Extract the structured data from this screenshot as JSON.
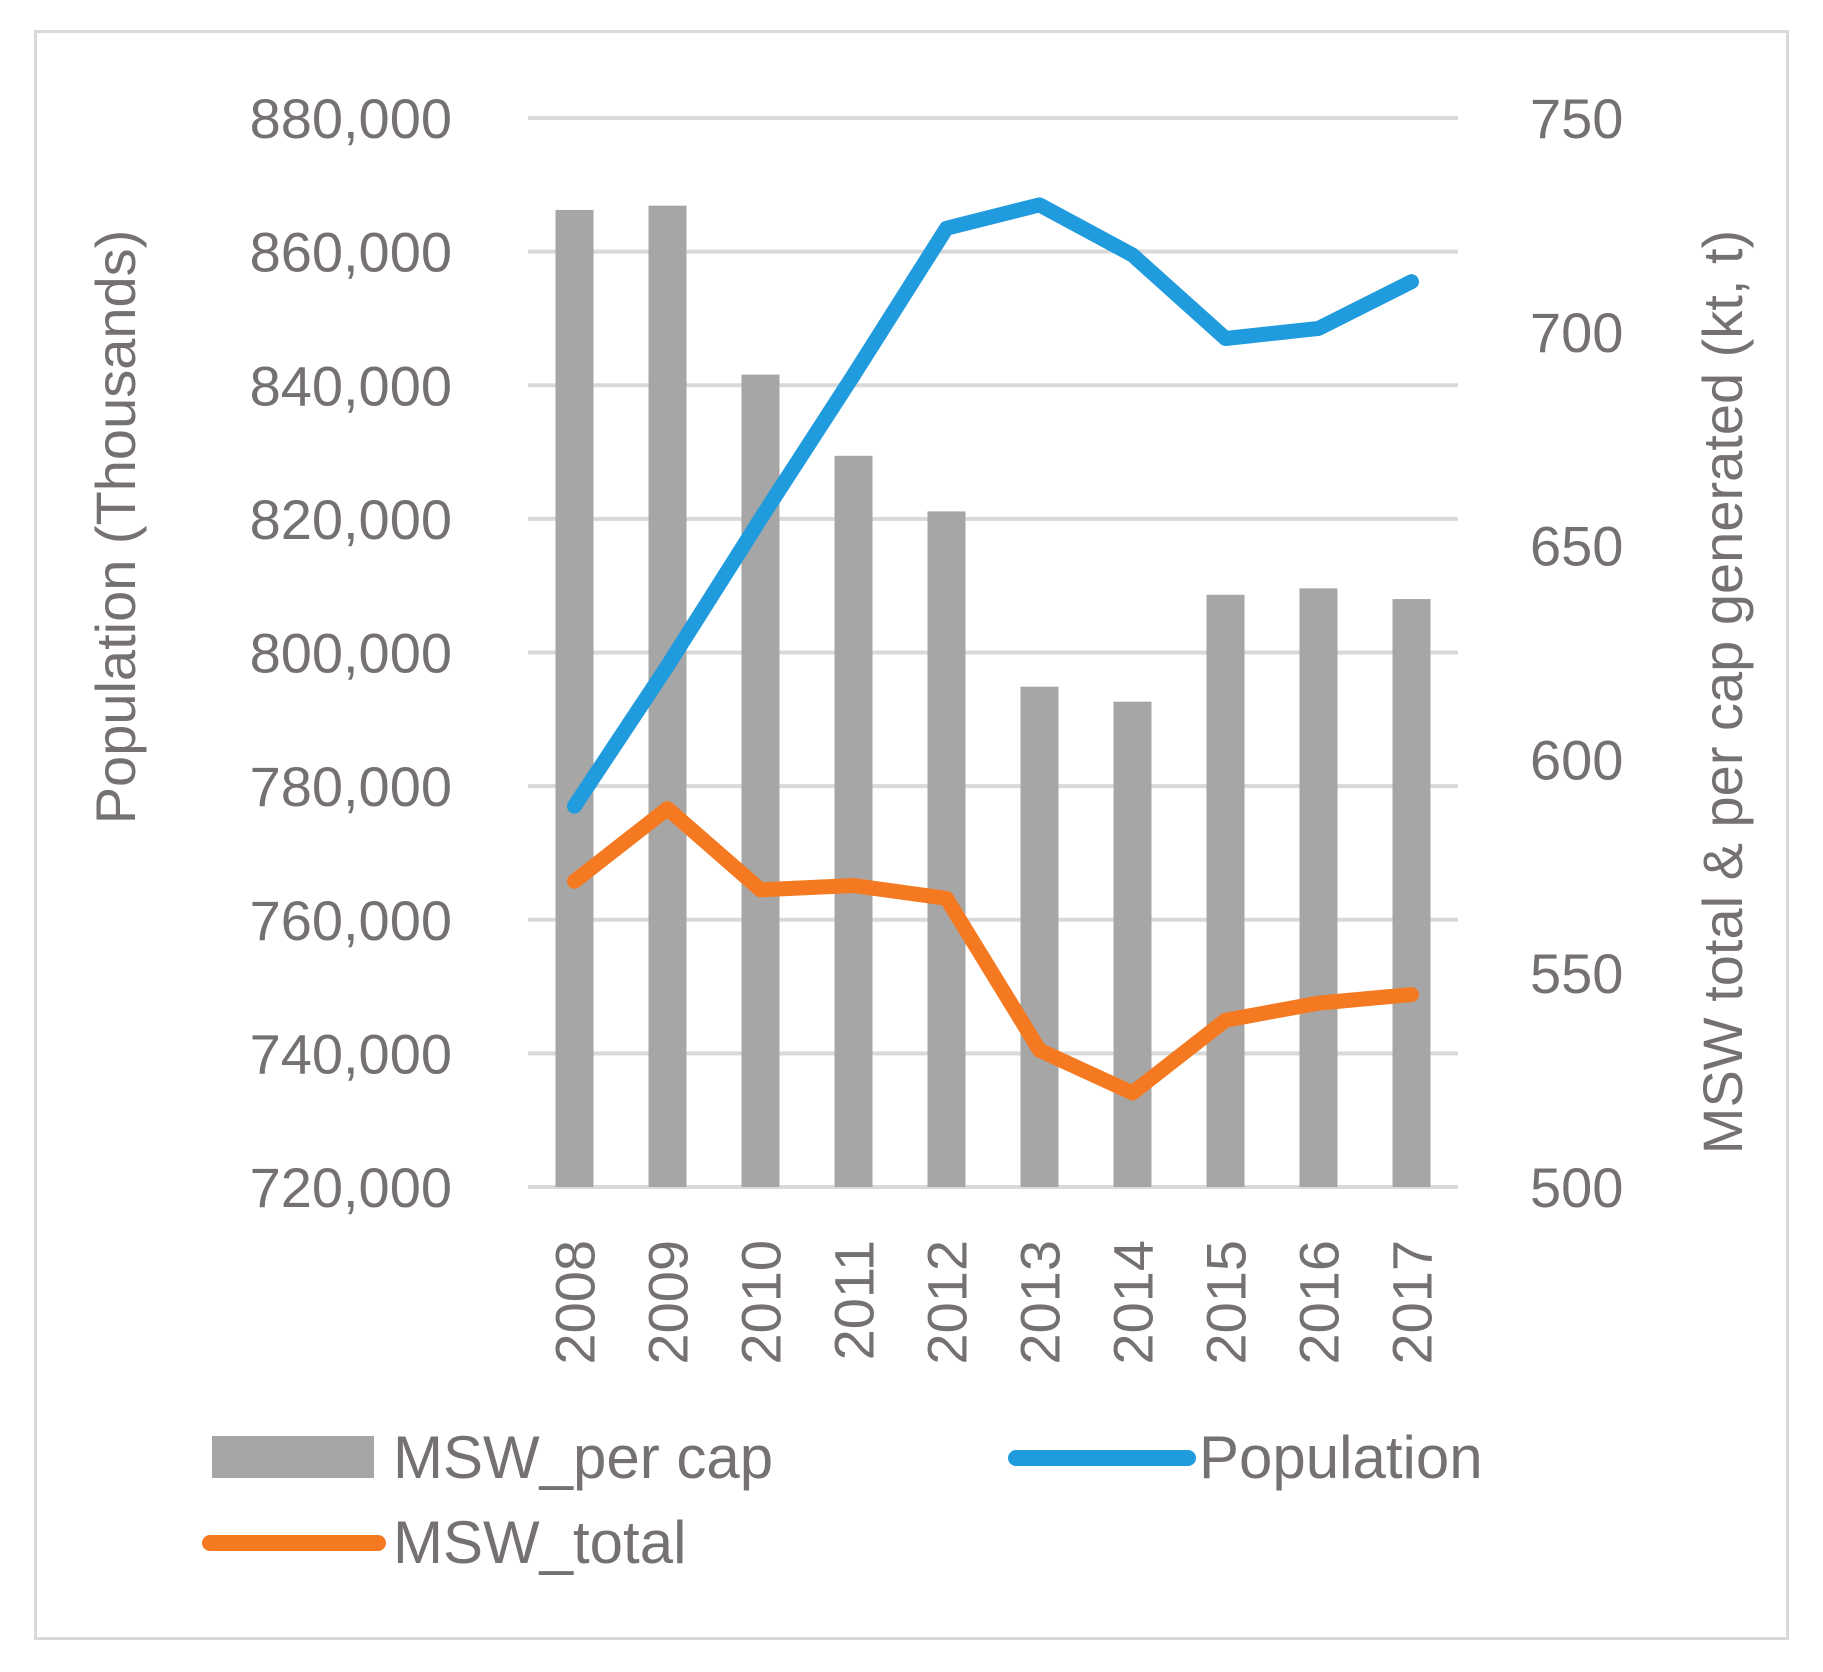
{
  "chart_data": {
    "type": "bar",
    "categories": [
      "2008",
      "2009",
      "2010",
      "2011",
      "2012",
      "2013",
      "2014",
      "2015",
      "2016",
      "2017"
    ],
    "series": [
      {
        "name": "MSW_per cap",
        "type": "bar",
        "axis": "right",
        "color": "#a6a6a6",
        "values": [
          728.5,
          729.5,
          690,
          671,
          658,
          617,
          613.5,
          638.5,
          640,
          637.5
        ]
      },
      {
        "name": "Population",
        "type": "line",
        "axis": "left",
        "color": "#1f9bde",
        "values": [
          777000,
          798000,
          820000,
          841500,
          863500,
          867000,
          859500,
          847000,
          848500,
          855500
        ]
      },
      {
        "name": "MSW_total",
        "type": "line",
        "axis": "right",
        "color": "#f47920",
        "values": [
          571.5,
          588.5,
          569.5,
          570.5,
          567.5,
          532,
          522,
          539,
          543,
          545
        ]
      }
    ],
    "y_left": {
      "label": "Population (Thousands)",
      "ylim": [
        720000,
        880000
      ],
      "ticks": [
        "720,000",
        "740,000",
        "760,000",
        "780,000",
        "800,000",
        "820,000",
        "840,000",
        "860,000",
        "880,000"
      ]
    },
    "y_right": {
      "label": "MSW total & per cap generated (kt, t)",
      "ylim": [
        500,
        750
      ],
      "ticks": [
        "500",
        "550",
        "600",
        "650",
        "700",
        "750"
      ]
    },
    "grid": true,
    "legend_position": "bottom",
    "legend": [
      "MSW_per cap",
      "Population",
      "MSW_total"
    ]
  }
}
